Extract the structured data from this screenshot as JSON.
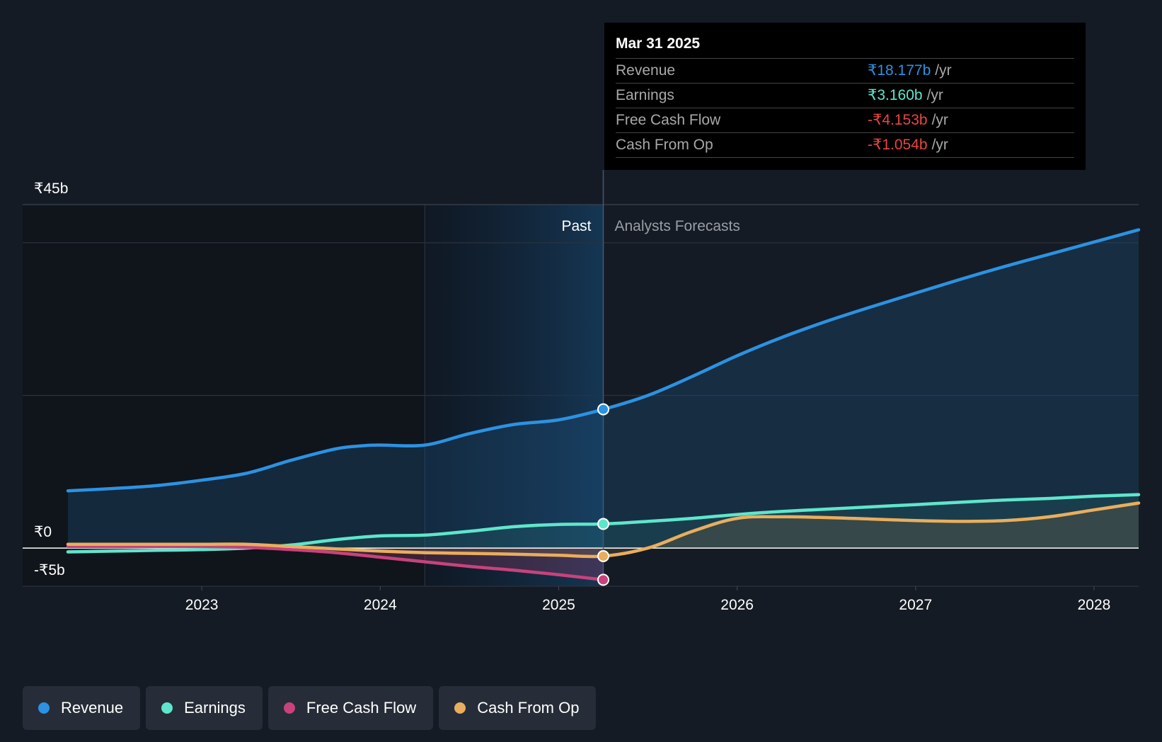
{
  "chart_data": {
    "type": "area",
    "title": "",
    "y_unit_prefix": "₹",
    "y_ticks": [
      "₹45b",
      "₹0",
      "-₹5b"
    ],
    "ylim": [
      -5,
      45
    ],
    "x_ticks": [
      "2023",
      "2024",
      "2025",
      "2026",
      "2027",
      "2028"
    ],
    "xlim": [
      2022.25,
      2028.25
    ],
    "past_label": "Past",
    "forecast_label": "Analysts Forecasts",
    "forecast_start": 2025.25,
    "highlight_start": 2024.25,
    "colors": {
      "Revenue": "#2c92e2",
      "Earnings": "#5ee6cc",
      "Free Cash Flow": "#c8427c",
      "Cash From Op": "#e9ae5d"
    },
    "series": [
      {
        "name": "Revenue",
        "x": [
          2022.25,
          2022.5,
          2022.75,
          2023.0,
          2023.25,
          2023.5,
          2023.75,
          2023.9,
          2024.0,
          2024.25,
          2024.5,
          2024.75,
          2025.0,
          2025.25,
          2025.5,
          2025.75,
          2026.0,
          2026.25,
          2026.5,
          2026.75,
          2027.0,
          2027.25,
          2027.5,
          2027.75,
          2028.0,
          2028.25
        ],
        "values": [
          7.5,
          7.8,
          8.2,
          8.9,
          9.8,
          11.5,
          13.0,
          13.4,
          13.5,
          13.5,
          15.0,
          16.2,
          16.8,
          18.177,
          20.0,
          22.5,
          25.2,
          27.6,
          29.7,
          31.6,
          33.4,
          35.2,
          36.9,
          38.5,
          40.1,
          41.7
        ]
      },
      {
        "name": "Earnings",
        "x": [
          2022.25,
          2022.5,
          2022.75,
          2023.0,
          2023.25,
          2023.5,
          2023.75,
          2024.0,
          2024.25,
          2024.5,
          2024.75,
          2025.0,
          2025.25,
          2025.5,
          2025.75,
          2026.0,
          2026.25,
          2026.5,
          2026.75,
          2027.0,
          2027.25,
          2027.5,
          2027.75,
          2028.0,
          2028.25
        ],
        "values": [
          -0.5,
          -0.4,
          -0.3,
          -0.2,
          0.0,
          0.4,
          1.1,
          1.6,
          1.7,
          2.2,
          2.8,
          3.1,
          3.16,
          3.5,
          3.9,
          4.4,
          4.8,
          5.1,
          5.4,
          5.7,
          6.0,
          6.3,
          6.5,
          6.8,
          7.0
        ]
      },
      {
        "name": "Free Cash Flow",
        "x": [
          2022.25,
          2022.5,
          2022.75,
          2023.0,
          2023.25,
          2023.5,
          2023.75,
          2024.0,
          2024.25,
          2024.5,
          2024.75,
          2025.0,
          2025.25
        ],
        "values": [
          0.2,
          0.2,
          0.2,
          0.2,
          0.1,
          -0.2,
          -0.6,
          -1.2,
          -1.8,
          -2.4,
          -2.9,
          -3.5,
          -4.153
        ]
      },
      {
        "name": "Cash From Op",
        "x": [
          2022.25,
          2022.5,
          2022.75,
          2023.0,
          2023.25,
          2023.5,
          2023.75,
          2024.0,
          2024.25,
          2024.5,
          2024.75,
          2025.0,
          2025.25,
          2025.5,
          2025.75,
          2026.0,
          2026.25,
          2026.5,
          2026.75,
          2027.0,
          2027.25,
          2027.5,
          2027.75,
          2028.0,
          2028.25
        ],
        "values": [
          0.5,
          0.5,
          0.5,
          0.5,
          0.5,
          0.2,
          -0.1,
          -0.4,
          -0.6,
          -0.7,
          -0.8,
          -0.95,
          -1.054,
          0.0,
          2.2,
          3.9,
          4.1,
          4.0,
          3.8,
          3.6,
          3.5,
          3.6,
          4.1,
          5.0,
          5.9
        ]
      }
    ]
  },
  "tooltip": {
    "date": "Mar 31 2025",
    "rows": [
      {
        "label": "Revenue",
        "value": "₹18.177b",
        "unit": "/yr",
        "color": "#2c92e2"
      },
      {
        "label": "Earnings",
        "value": "₹3.160b",
        "unit": "/yr",
        "color": "#5ee6cc"
      },
      {
        "label": "Free Cash Flow",
        "value": "-₹4.153b",
        "unit": "/yr",
        "color": "#e84545"
      },
      {
        "label": "Cash From Op",
        "value": "-₹1.054b",
        "unit": "/yr",
        "color": "#e84545"
      }
    ]
  },
  "legend": [
    {
      "label": "Revenue",
      "color": "#2c92e2"
    },
    {
      "label": "Earnings",
      "color": "#5ee6cc"
    },
    {
      "label": "Free Cash Flow",
      "color": "#c8427c"
    },
    {
      "label": "Cash From Op",
      "color": "#e9ae5d"
    }
  ]
}
